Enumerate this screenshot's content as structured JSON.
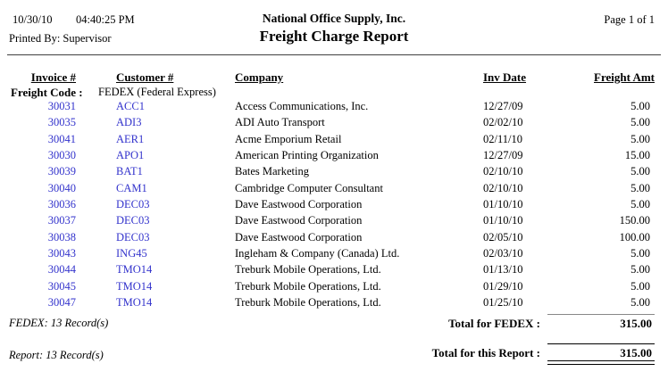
{
  "page": {
    "print_date": "10/30/10",
    "print_time": "04:40:25 PM",
    "printed_by": "Printed By: Supervisor",
    "company_name": "National Office Supply, Inc.",
    "report_title": "Freight Charge Report",
    "page_info": "Page 1 of 1"
  },
  "table": {
    "headers": {
      "invoice": "Invoice #",
      "customer": "Customer #",
      "company": "Company",
      "inv_date": "Inv Date",
      "freight_amt": "Freight Amt"
    },
    "group": {
      "label": "Freight Code :",
      "value": "FEDEX (Federal Express)"
    },
    "rows": [
      {
        "invoice": "30031",
        "customer": "ACC1",
        "company": "Access Communications, Inc.",
        "inv_date": "12/27/09",
        "freight_amt": "5.00"
      },
      {
        "invoice": "30035",
        "customer": "ADI3",
        "company": "ADI Auto Transport",
        "inv_date": "02/02/10",
        "freight_amt": "5.00"
      },
      {
        "invoice": "30041",
        "customer": "AER1",
        "company": "Acme Emporium Retail",
        "inv_date": "02/11/10",
        "freight_amt": "5.00"
      },
      {
        "invoice": "30030",
        "customer": "APO1",
        "company": "American Printing Organization",
        "inv_date": "12/27/09",
        "freight_amt": "15.00"
      },
      {
        "invoice": "30039",
        "customer": "BAT1",
        "company": "Bates Marketing",
        "inv_date": "02/10/10",
        "freight_amt": "5.00"
      },
      {
        "invoice": "30040",
        "customer": "CAM1",
        "company": "Cambridge Computer Consultant",
        "inv_date": "02/10/10",
        "freight_amt": "5.00"
      },
      {
        "invoice": "30036",
        "customer": "DEC03",
        "company": "Dave Eastwood Corporation",
        "inv_date": "01/10/10",
        "freight_amt": "5.00"
      },
      {
        "invoice": "30037",
        "customer": "DEC03",
        "company": "Dave Eastwood Corporation",
        "inv_date": "01/10/10",
        "freight_amt": "150.00"
      },
      {
        "invoice": "30038",
        "customer": "DEC03",
        "company": "Dave Eastwood Corporation",
        "inv_date": "02/05/10",
        "freight_amt": "100.00"
      },
      {
        "invoice": "30043",
        "customer": "ING45",
        "company": "Ingleham & Company (Canada) Ltd.",
        "inv_date": "02/03/10",
        "freight_amt": "5.00"
      },
      {
        "invoice": "30044",
        "customer": "TMO14",
        "company": "Treburk Mobile Operations, Ltd.",
        "inv_date": "01/13/10",
        "freight_amt": "5.00"
      },
      {
        "invoice": "30045",
        "customer": "TMO14",
        "company": "Treburk Mobile Operations, Ltd.",
        "inv_date": "01/29/10",
        "freight_amt": "5.00"
      },
      {
        "invoice": "30047",
        "customer": "TMO14",
        "company": "Treburk Mobile Operations, Ltd.",
        "inv_date": "01/25/10",
        "freight_amt": "5.00"
      }
    ],
    "group_footer": {
      "record_count": "FEDEX: 13 Record(s)",
      "total_label": "Total for FEDEX :",
      "total_value": "315.00"
    },
    "report_footer": {
      "record_count": "Report: 13 Record(s)",
      "total_label": "Total for this Report :",
      "total_value": "315.00"
    }
  },
  "colors": {
    "link_blue": "#3333cc",
    "text": "#000000",
    "background": "#ffffff"
  }
}
